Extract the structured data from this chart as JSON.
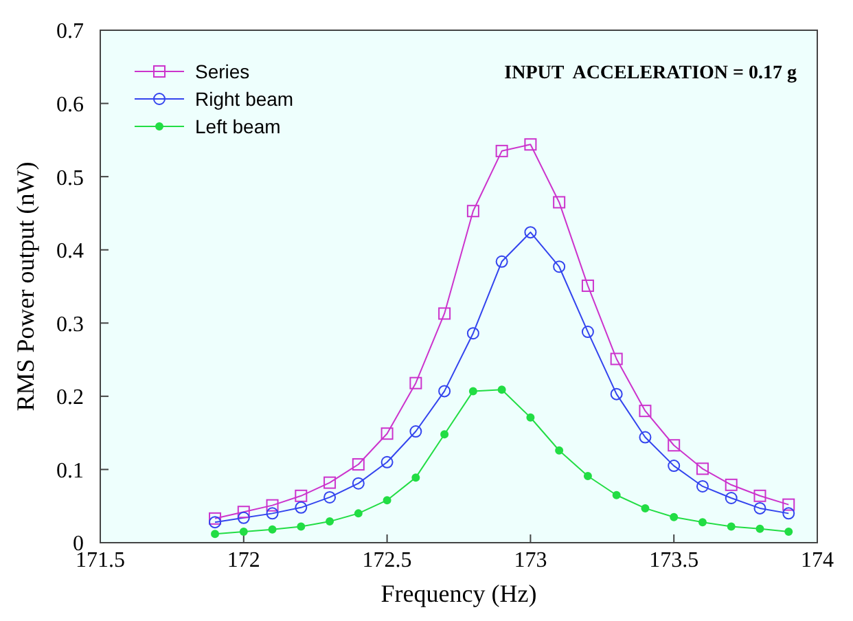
{
  "chart_data": {
    "type": "line",
    "xlabel": "Frequency (Hz)",
    "ylabel": "RMS Power output (nW)",
    "annotations": [
      "INPUT  ACCELERATION = 0.17 g"
    ],
    "x": [
      171.9,
      172.0,
      172.1,
      172.2,
      172.3,
      172.4,
      172.5,
      172.6,
      172.7,
      172.8,
      172.9,
      173.0,
      173.1,
      173.2,
      173.3,
      173.4,
      173.5,
      173.6,
      173.7,
      173.8,
      173.9
    ],
    "series": [
      {
        "name": "Series",
        "color": "#cc33cc",
        "marker": "square",
        "values": [
          0.033,
          0.042,
          0.051,
          0.064,
          0.082,
          0.107,
          0.149,
          0.218,
          0.313,
          0.453,
          0.535,
          0.544,
          0.465,
          0.351,
          0.251,
          0.18,
          0.133,
          0.101,
          0.079,
          0.064,
          0.052
        ]
      },
      {
        "name": "Right beam",
        "color": "#3344ee",
        "marker": "circle",
        "values": [
          0.028,
          0.034,
          0.04,
          0.048,
          0.062,
          0.081,
          0.11,
          0.152,
          0.207,
          0.286,
          0.384,
          0.424,
          0.377,
          0.288,
          0.203,
          0.144,
          0.105,
          0.077,
          0.061,
          0.047,
          0.04
        ]
      },
      {
        "name": "Left beam",
        "color": "#22dd44",
        "marker": "circle",
        "values": [
          0.012,
          0.015,
          0.018,
          0.022,
          0.029,
          0.04,
          0.058,
          0.089,
          0.148,
          0.207,
          0.209,
          0.171,
          0.126,
          0.091,
          0.065,
          0.047,
          0.035,
          0.028,
          0.022,
          0.019,
          0.015
        ]
      }
    ],
    "xlim": [
      171.5,
      174
    ],
    "xticks": [
      171.5,
      172,
      172.5,
      173,
      173.5,
      174
    ],
    "ylim": [
      0,
      0.7
    ],
    "yticks": [
      0,
      0.1,
      0.2,
      0.3,
      0.4,
      0.5,
      0.6,
      0.7
    ],
    "legend": "top left"
  }
}
